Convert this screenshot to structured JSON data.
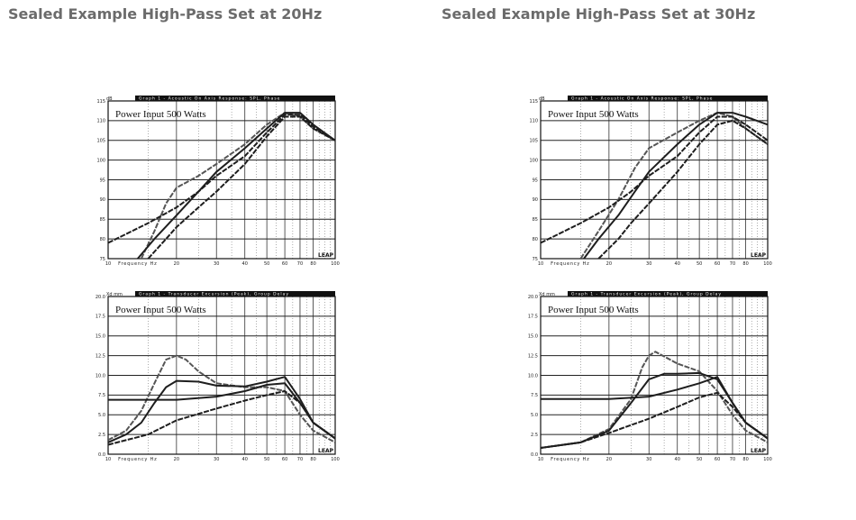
{
  "titles": {
    "left": "Sealed Example High-Pass Set at 20Hz",
    "right": "Sealed Example High-Pass Set at 30Hz"
  },
  "colors": {
    "curve_dark": "#1e1e1e",
    "curve_gray": "#555555",
    "title": "#6b6b6b"
  },
  "chart_data": [
    {
      "id": "spl-left",
      "type": "line",
      "header": "Graph 1 - Acoustic On Axis Response: SPL, Phase",
      "annotation": "Power Input 500 Watts",
      "ylabel": "dB",
      "xlabel_text": "Frequency  Hz",
      "logo": "LEAP",
      "xscale": "log",
      "xlim": [
        10,
        100
      ],
      "ylim": [
        75,
        115
      ],
      "x_ticks": [
        10,
        20,
        30,
        40,
        50,
        60,
        70,
        80,
        100
      ],
      "x_tick_labels": [
        "10",
        "20",
        "30",
        "40",
        "50",
        "60",
        "70",
        "80",
        "100"
      ],
      "y_ticks": [
        75,
        80,
        85,
        90,
        95,
        100,
        105,
        110,
        115
      ],
      "y_tick_labels": [
        "75",
        "80",
        "85",
        "90",
        "95",
        "100",
        "105",
        "110",
        "115"
      ],
      "series": [
        {
          "style": "gray-dashed",
          "points": [
            [
              14,
              75
            ],
            [
              16,
              82
            ],
            [
              18,
              89
            ],
            [
              20,
              93
            ],
            [
              25,
              96
            ],
            [
              30,
              99
            ],
            [
              40,
              104
            ],
            [
              50,
              109
            ],
            [
              60,
              112
            ],
            [
              70,
              111
            ],
            [
              80,
              108
            ],
            [
              100,
              105
            ]
          ]
        },
        {
          "style": "dark-dashed",
          "points": [
            [
              15,
              75
            ],
            [
              18,
              80
            ],
            [
              20,
              83
            ],
            [
              25,
              88
            ],
            [
              30,
              92
            ],
            [
              40,
              99
            ],
            [
              50,
              106
            ],
            [
              60,
              111
            ],
            [
              70,
              111
            ],
            [
              80,
              108
            ],
            [
              100,
              105
            ]
          ]
        },
        {
          "style": "dark-solid",
          "points": [
            [
              13.5,
              75
            ],
            [
              16,
              80
            ],
            [
              20,
              86
            ],
            [
              25,
              92
            ],
            [
              30,
              97
            ],
            [
              40,
              103
            ],
            [
              50,
              108
            ],
            [
              60,
              112
            ],
            [
              70,
              112
            ],
            [
              80,
              109
            ],
            [
              100,
              105
            ]
          ]
        },
        {
          "style": "dark-dashed",
          "points": [
            [
              10,
              79
            ],
            [
              15,
              84
            ],
            [
              20,
              88
            ],
            [
              25,
              92
            ],
            [
              30,
              96
            ],
            [
              40,
              101
            ],
            [
              50,
              107
            ],
            [
              60,
              111.5
            ],
            [
              70,
              111.5
            ],
            [
              80,
              108.5
            ],
            [
              100,
              105
            ]
          ]
        }
      ]
    },
    {
      "id": "gd-left",
      "type": "line",
      "header": "Graph 1 - Transducer Excursion (Peak), Group Delay",
      "annotation": "Power Input 500 Watts",
      "ylabel": "Xd mm",
      "xlabel_text": "Frequency  Hz",
      "logo": "LEAP",
      "xscale": "log",
      "xlim": [
        10,
        100
      ],
      "ylim": [
        0,
        20
      ],
      "x_ticks": [
        10,
        20,
        30,
        40,
        50,
        60,
        70,
        80,
        100
      ],
      "x_tick_labels": [
        "10",
        "20",
        "30",
        "40",
        "50",
        "60",
        "70",
        "80",
        "100"
      ],
      "y_ticks": [
        0,
        2.5,
        5,
        7.5,
        10,
        12.5,
        15,
        17.5,
        20
      ],
      "y_tick_labels": [
        "0.0",
        "2.5",
        "5.0",
        "7.5",
        "10.0",
        "12.5",
        "15.0",
        "17.5",
        "20.0"
      ],
      "series": [
        {
          "style": "gray-dashed",
          "points": [
            [
              10,
              1.8
            ],
            [
              12,
              3
            ],
            [
              14,
              5.5
            ],
            [
              16,
              9
            ],
            [
              18,
              12
            ],
            [
              20,
              12.5
            ],
            [
              22,
              12
            ],
            [
              25,
              10.5
            ],
            [
              30,
              9
            ],
            [
              40,
              8.5
            ],
            [
              50,
              8.5
            ],
            [
              60,
              8
            ],
            [
              70,
              5
            ],
            [
              80,
              3
            ],
            [
              100,
              1.5
            ]
          ]
        },
        {
          "style": "dark-solid",
          "points": [
            [
              10,
              1.5
            ],
            [
              12,
              2.5
            ],
            [
              14,
              4
            ],
            [
              16,
              6.5
            ],
            [
              18,
              8.5
            ],
            [
              20,
              9.3
            ],
            [
              25,
              9.2
            ],
            [
              30,
              8.7
            ],
            [
              40,
              8.6
            ],
            [
              50,
              9.2
            ],
            [
              60,
              9.8
            ],
            [
              70,
              7
            ],
            [
              80,
              4
            ],
            [
              100,
              2
            ]
          ]
        },
        {
          "style": "dark-solid",
          "points": [
            [
              10,
              6.9
            ],
            [
              15,
              6.9
            ],
            [
              20,
              6.9
            ],
            [
              30,
              7.3
            ],
            [
              40,
              8
            ],
            [
              50,
              8.8
            ],
            [
              60,
              9
            ],
            [
              70,
              6.5
            ],
            [
              80,
              4
            ],
            [
              100,
              2
            ]
          ]
        },
        {
          "style": "dark-dashed",
          "points": [
            [
              10,
              1.2
            ],
            [
              15,
              2.5
            ],
            [
              20,
              4.3
            ],
            [
              30,
              5.8
            ],
            [
              40,
              6.8
            ],
            [
              50,
              7.5
            ],
            [
              60,
              8
            ],
            [
              70,
              6.5
            ],
            [
              80,
              4
            ],
            [
              100,
              2
            ]
          ]
        }
      ]
    },
    {
      "id": "spl-right",
      "type": "line",
      "header": "Graph 1 - Acoustic On Axis Response: SPL, Phase",
      "annotation": "Power Input 500 Watts",
      "ylabel": "dB",
      "xlabel_text": "Frequency  Hz",
      "logo": "LEAP",
      "xscale": "log",
      "xlim": [
        10,
        100
      ],
      "ylim": [
        75,
        115
      ],
      "x_ticks": [
        10,
        20,
        30,
        40,
        50,
        60,
        70,
        80,
        100
      ],
      "x_tick_labels": [
        "10",
        "20",
        "30",
        "40",
        "50",
        "60",
        "70",
        "80",
        "100"
      ],
      "y_ticks": [
        75,
        80,
        85,
        90,
        95,
        100,
        105,
        110,
        115
      ],
      "y_tick_labels": [
        "75",
        "80",
        "85",
        "90",
        "95",
        "100",
        "105",
        "110",
        "115"
      ],
      "series": [
        {
          "style": "gray-dashed",
          "points": [
            [
              15,
              75
            ],
            [
              18,
              82
            ],
            [
              22,
              90
            ],
            [
              26,
              98
            ],
            [
              30,
              103
            ],
            [
              40,
              107
            ],
            [
              50,
              110
            ],
            [
              60,
              112
            ],
            [
              70,
              111
            ],
            [
              80,
              108
            ],
            [
              100,
              104
            ]
          ]
        },
        {
          "style": "dark-dashed",
          "points": [
            [
              18,
              75
            ],
            [
              22,
              80
            ],
            [
              25,
              84
            ],
            [
              30,
              89
            ],
            [
              40,
              97
            ],
            [
              50,
              104
            ],
            [
              60,
              109
            ],
            [
              70,
              110
            ],
            [
              80,
              108
            ],
            [
              100,
              104
            ]
          ]
        },
        {
          "style": "dark-solid",
          "points": [
            [
              15.5,
              75
            ],
            [
              18,
              80
            ],
            [
              22,
              86
            ],
            [
              26,
              92
            ],
            [
              30,
              97
            ],
            [
              40,
              104
            ],
            [
              50,
              109
            ],
            [
              60,
              112
            ],
            [
              70,
              112
            ],
            [
              80,
              111
            ],
            [
              100,
              109
            ]
          ]
        },
        {
          "style": "dark-dashed",
          "points": [
            [
              10,
              79
            ],
            [
              15,
              84
            ],
            [
              20,
              88
            ],
            [
              25,
              92
            ],
            [
              30,
              96
            ],
            [
              40,
              101
            ],
            [
              50,
              107
            ],
            [
              60,
              111
            ],
            [
              70,
              111
            ],
            [
              80,
              109
            ],
            [
              100,
              105
            ]
          ]
        }
      ]
    },
    {
      "id": "gd-right",
      "type": "line",
      "header": "Graph 1 - Transducer Excursion (Peak), Group Delay",
      "annotation": "Power Input 500 Watts",
      "ylabel": "Xd mm",
      "xlabel_text": "Frequency  Hz",
      "logo": "LEAP",
      "xscale": "log",
      "xlim": [
        10,
        100
      ],
      "ylim": [
        0,
        20
      ],
      "x_ticks": [
        10,
        20,
        30,
        40,
        50,
        60,
        70,
        80,
        100
      ],
      "x_tick_labels": [
        "10",
        "20",
        "30",
        "40",
        "50",
        "60",
        "70",
        "80",
        "100"
      ],
      "y_ticks": [
        0,
        2.5,
        5,
        7.5,
        10,
        12.5,
        15,
        17.5,
        20
      ],
      "y_tick_labels": [
        "0.0",
        "2.5",
        "5.0",
        "7.5",
        "10.0",
        "12.5",
        "15.0",
        "17.5",
        "20.0"
      ],
      "series": [
        {
          "style": "gray-dashed",
          "points": [
            [
              10,
              0.8
            ],
            [
              15,
              1.5
            ],
            [
              20,
              3.2
            ],
            [
              25,
              7
            ],
            [
              28,
              11
            ],
            [
              30,
              12.5
            ],
            [
              32,
              13
            ],
            [
              40,
              11.5
            ],
            [
              50,
              10.5
            ],
            [
              60,
              8
            ],
            [
              70,
              5
            ],
            [
              80,
              3
            ],
            [
              100,
              1.5
            ]
          ]
        },
        {
          "style": "dark-solid",
          "points": [
            [
              10,
              0.8
            ],
            [
              15,
              1.5
            ],
            [
              20,
              3
            ],
            [
              25,
              6.5
            ],
            [
              30,
              9.5
            ],
            [
              35,
              10.2
            ],
            [
              40,
              10.2
            ],
            [
              50,
              10.3
            ],
            [
              60,
              9.5
            ],
            [
              70,
              6.5
            ],
            [
              80,
              4
            ],
            [
              100,
              2
            ]
          ]
        },
        {
          "style": "dark-solid",
          "points": [
            [
              10,
              7
            ],
            [
              20,
              7
            ],
            [
              30,
              7.3
            ],
            [
              40,
              8.2
            ],
            [
              50,
              9
            ],
            [
              60,
              9.8
            ],
            [
              70,
              6.5
            ],
            [
              80,
              4
            ],
            [
              100,
              2
            ]
          ]
        },
        {
          "style": "dark-dashed",
          "points": [
            [
              10,
              0.8
            ],
            [
              15,
              1.5
            ],
            [
              20,
              2.7
            ],
            [
              30,
              4.5
            ],
            [
              40,
              6
            ],
            [
              50,
              7.2
            ],
            [
              60,
              7.8
            ],
            [
              70,
              6
            ],
            [
              80,
              4
            ],
            [
              100,
              2
            ]
          ]
        }
      ]
    }
  ]
}
